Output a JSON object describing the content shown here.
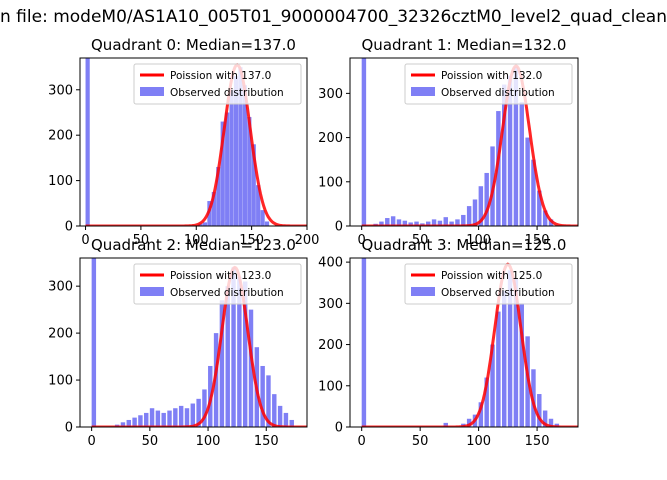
{
  "window": {
    "figure_title": "n file: modeM0/AS1A10_005T01_9000004700_32326cztM0_level2_quad_clean"
  },
  "colors": {
    "hist": "#7f7ff5",
    "fit": "#ff0000",
    "axis": "#000000"
  },
  "chart_data": [
    {
      "type": "bar",
      "title": "Quadrant 0: Median=137.0",
      "median": 137.0,
      "xlim": [
        -5,
        200
      ],
      "ylim": [
        0,
        370
      ],
      "xticks": [
        0,
        50,
        100,
        150,
        200
      ],
      "xticklabels": [
        "0",
        "50",
        "100",
        "150",
        "200"
      ],
      "yticks": [
        0,
        100,
        200,
        300
      ],
      "yticklabels": [
        "0",
        "100",
        "200",
        "300"
      ],
      "legend": {
        "location": "top-right",
        "fit_label": "Poission with 137.0",
        "hist_label": "Observed distribution"
      },
      "bin_width": 3.8,
      "bins_x": [
        0,
        102,
        106,
        110,
        114,
        118,
        122,
        126,
        130,
        134,
        138,
        142,
        146,
        150,
        154,
        158,
        162
      ],
      "bins_y": [
        370,
        5,
        8,
        55,
        75,
        130,
        230,
        250,
        300,
        330,
        350,
        310,
        240,
        180,
        90,
        35,
        10
      ],
      "fit_peak": 355
    },
    {
      "type": "bar",
      "title": "Quadrant 1: Median=132.0",
      "median": 132.0,
      "xlim": [
        -10,
        185
      ],
      "ylim": [
        0,
        380
      ],
      "xticks": [
        0,
        50,
        100,
        150
      ],
      "xticklabels": [
        "0",
        "50",
        "100",
        "150"
      ],
      "yticks": [
        0,
        100,
        200,
        300
      ],
      "yticklabels": [
        "0",
        "100",
        "200",
        "300"
      ],
      "legend": {
        "location": "top-right",
        "fit_label": "Poission with 132.0",
        "hist_label": "Observed distribution"
      },
      "bin_width": 3.8,
      "bins_x": [
        0,
        10,
        15,
        20,
        25,
        30,
        35,
        40,
        45,
        50,
        55,
        60,
        65,
        70,
        75,
        80,
        85,
        90,
        95,
        100,
        105,
        110,
        115,
        120,
        125,
        130,
        135,
        140,
        145,
        150,
        155,
        160
      ],
      "bins_y": [
        380,
        5,
        10,
        18,
        22,
        15,
        12,
        8,
        10,
        6,
        10,
        15,
        12,
        20,
        10,
        15,
        25,
        45,
        60,
        90,
        120,
        180,
        260,
        320,
        340,
        360,
        280,
        200,
        150,
        80,
        35,
        15
      ],
      "fit_peak": 362
    },
    {
      "type": "bar",
      "title": "Quadrant 2: Median=123.0",
      "median": 123.0,
      "xlim": [
        -10,
        185
      ],
      "ylim": [
        0,
        360
      ],
      "xticks": [
        0,
        50,
        100,
        150
      ],
      "xticklabels": [
        "0",
        "50",
        "100",
        "150"
      ],
      "yticks": [
        0,
        100,
        200,
        300
      ],
      "yticklabels": [
        "0",
        "100",
        "200",
        "300"
      ],
      "legend": {
        "location": "top-right",
        "fit_label": "Poission with 123.0",
        "hist_label": "Observed distribution"
      },
      "bin_width": 3.8,
      "bins_x": [
        0,
        20,
        25,
        30,
        35,
        40,
        45,
        50,
        55,
        60,
        65,
        70,
        75,
        80,
        85,
        90,
        95,
        100,
        105,
        110,
        115,
        120,
        125,
        130,
        135,
        140,
        145,
        150,
        155,
        160,
        165,
        170
      ],
      "bins_y": [
        360,
        5,
        10,
        15,
        20,
        25,
        30,
        40,
        35,
        30,
        35,
        40,
        45,
        40,
        50,
        60,
        80,
        130,
        200,
        270,
        300,
        340,
        320,
        310,
        250,
        170,
        130,
        110,
        70,
        45,
        30,
        15
      ],
      "fit_peak": 340
    },
    {
      "type": "bar",
      "title": "Quadrant 3: Median=125.0",
      "median": 125.0,
      "xlim": [
        -10,
        185
      ],
      "ylim": [
        0,
        410
      ],
      "xticks": [
        0,
        50,
        100,
        150
      ],
      "xticklabels": [
        "0",
        "50",
        "100",
        "150"
      ],
      "yticks": [
        0,
        100,
        200,
        300,
        400
      ],
      "yticklabels": [
        "0",
        "100",
        "200",
        "300",
        "400"
      ],
      "legend": {
        "location": "top-right",
        "fit_label": "Poission with 125.0",
        "hist_label": "Observed distribution"
      },
      "bin_width": 3.8,
      "bins_x": [
        0,
        70,
        85,
        90,
        95,
        100,
        105,
        110,
        115,
        120,
        125,
        130,
        135,
        140,
        145,
        150,
        155,
        160,
        165
      ],
      "bins_y": [
        410,
        10,
        8,
        20,
        30,
        60,
        120,
        200,
        280,
        330,
        380,
        360,
        300,
        220,
        140,
        80,
        40,
        20,
        8
      ],
      "fit_peak": 395
    }
  ]
}
